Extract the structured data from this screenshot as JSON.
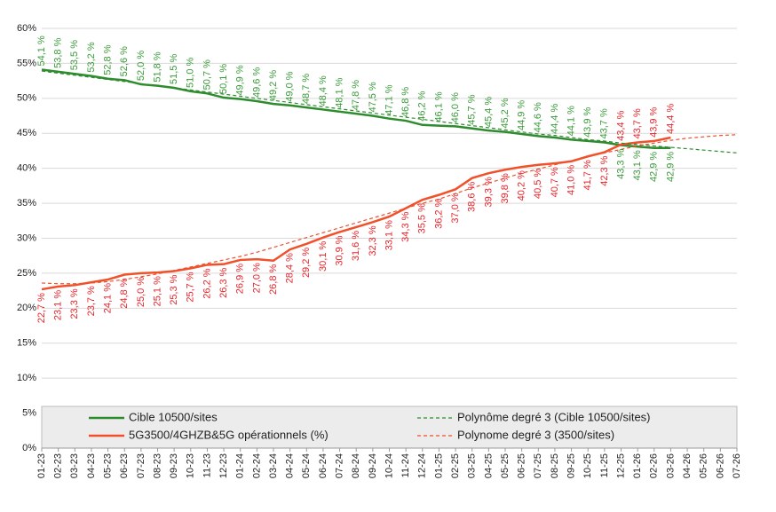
{
  "chart_data": {
    "type": "line",
    "categories": [
      "01-23",
      "02-23",
      "03-23",
      "04-23",
      "05-23",
      "06-23",
      "07-23",
      "08-23",
      "09-23",
      "10-23",
      "11-23",
      "12-23",
      "01-24",
      "02-24",
      "03-24",
      "04-24",
      "05-24",
      "06-24",
      "07-24",
      "08-24",
      "09-24",
      "10-24",
      "11-24",
      "12-24",
      "01-25",
      "02-25",
      "03-25",
      "04-25",
      "05-25",
      "06-25",
      "07-25",
      "08-25",
      "09-25",
      "10-25",
      "11-25",
      "12-25",
      "01-26",
      "02-26",
      "03-26",
      "04-26",
      "05-26",
      "06-26",
      "07-26"
    ],
    "ylim": [
      0,
      60
    ],
    "yticks": [
      {
        "value": 0,
        "label": "0%"
      },
      {
        "value": 5,
        "label": "5%"
      },
      {
        "value": 10,
        "label": "10%"
      },
      {
        "value": 15,
        "label": "15%"
      },
      {
        "value": 20,
        "label": "20%"
      },
      {
        "value": 25,
        "label": "25%"
      },
      {
        "value": 30,
        "label": "30%"
      },
      {
        "value": 35,
        "label": "35%"
      },
      {
        "value": 40,
        "label": "40%"
      },
      {
        "value": 45,
        "label": "45%"
      },
      {
        "value": 50,
        "label": "50%"
      },
      {
        "value": 55,
        "label": "55%"
      },
      {
        "value": 60,
        "label": "60%"
      }
    ],
    "grid": true,
    "legend": "bottom",
    "series": [
      {
        "name": "Cible 10500/sites",
        "color": "#2e8b2e",
        "label_color": "#3a9a3a",
        "dashed": false,
        "values": [
          54.1,
          53.8,
          53.5,
          53.2,
          52.8,
          52.6,
          52.0,
          51.8,
          51.5,
          51.0,
          50.7,
          50.1,
          49.9,
          49.6,
          49.2,
          49.0,
          48.7,
          48.4,
          48.1,
          47.8,
          47.5,
          47.1,
          46.8,
          46.2,
          46.1,
          46.0,
          45.7,
          45.4,
          45.2,
          44.9,
          44.6,
          44.4,
          44.1,
          43.9,
          43.7,
          43.3,
          43.1,
          42.9,
          42.9,
          null,
          null,
          null,
          null
        ],
        "value_labels": [
          "54,1 %",
          "53,8 %",
          "53,5 %",
          "53,2 %",
          "52,8 %",
          "52,6 %",
          "52,0 %",
          "51,8 %",
          "51,5 %",
          "51,0 %",
          "50,7 %",
          "50,1 %",
          "49,9 %",
          "49,6 %",
          "49,2 %",
          "49,0 %",
          "48,7 %",
          "48,4 %",
          "48,1 %",
          "47,8 %",
          "47,5 %",
          "47,1 %",
          "46,8 %",
          "46,2 %",
          "46,1 %",
          "46,0 %",
          "45,7 %",
          "45,4 %",
          "45,2 %",
          "44,9 %",
          "44,6 %",
          "44,4 %",
          "44,1 %",
          "43,9 %",
          "43,7 %",
          "43,3 %",
          "43,1 %",
          "42,9 %",
          "42,9 %",
          null,
          null,
          null,
          null
        ]
      },
      {
        "name": "5G3500/4GHZB&5G opérationnels (%)",
        "color": "#f0502a",
        "label_color": "#e8232a",
        "dashed": false,
        "values": [
          22.7,
          23.1,
          23.3,
          23.7,
          24.1,
          24.8,
          25.0,
          25.1,
          25.3,
          25.7,
          26.2,
          26.3,
          26.9,
          27.0,
          26.8,
          28.4,
          29.2,
          30.1,
          30.9,
          31.6,
          32.3,
          33.1,
          34.3,
          35.5,
          36.2,
          37.0,
          38.6,
          39.3,
          39.8,
          40.2,
          40.5,
          40.7,
          41.0,
          41.7,
          42.3,
          43.4,
          43.7,
          43.9,
          44.4,
          null,
          null,
          null,
          null
        ],
        "value_labels": [
          "22,7 %",
          "23,1 %",
          "23,3 %",
          "23,7 %",
          "24,1 %",
          "24,8 %",
          "25,0 %",
          "25,1 %",
          "25,3 %",
          "25,7 %",
          "26,2 %",
          "26,3 %",
          "26,9 %",
          "27,0 %",
          "26,8 %",
          "28,4 %",
          "29,2 %",
          "30,1 %",
          "30,9 %",
          "31,6 %",
          "32,3 %",
          "33,1 %",
          "34,3 %",
          "35,5 %",
          "36,2 %",
          "37,0 %",
          "38,6 %",
          "39,3 %",
          "39,8 %",
          "40,2 %",
          "40,5 %",
          "40,7 %",
          "41,0 %",
          "41,7 %",
          "42,3 %",
          "43,4 %",
          "43,7 %",
          "43,9 %",
          "44,4 %",
          null,
          null,
          null,
          null
        ]
      },
      {
        "name": "Polynôme degré 3 (Cible 10500/sites)",
        "color": "#2e8b2e",
        "dashed": true,
        "values": [
          53.9,
          53.6,
          53.3,
          53.0,
          52.7,
          52.4,
          52.1,
          51.8,
          51.5,
          51.2,
          50.9,
          50.6,
          50.3,
          50.0,
          49.7,
          49.4,
          49.1,
          48.8,
          48.5,
          48.2,
          47.9,
          47.6,
          47.3,
          47.0,
          46.7,
          46.4,
          46.1,
          45.8,
          45.5,
          45.2,
          44.9,
          44.7,
          44.4,
          44.1,
          43.9,
          43.6,
          43.4,
          43.2,
          43.0,
          42.8,
          42.6,
          42.4,
          42.2
        ]
      },
      {
        "name": "Polynome degré 3 (3500/sites)",
        "color": "#f0502a",
        "dashed": true,
        "values": [
          23.6,
          23.5,
          23.5,
          23.6,
          23.8,
          24.1,
          24.5,
          24.9,
          25.4,
          25.9,
          26.4,
          26.9,
          27.4,
          28.0,
          28.7,
          29.4,
          30.1,
          30.8,
          31.5,
          32.2,
          32.9,
          33.6,
          34.3,
          35.0,
          35.6,
          36.4,
          37.2,
          37.9,
          38.6,
          39.3,
          39.9,
          40.5,
          41.1,
          41.7,
          42.2,
          42.7,
          43.2,
          43.6,
          44.0,
          44.3,
          44.5,
          44.7,
          44.8
        ]
      }
    ]
  }
}
